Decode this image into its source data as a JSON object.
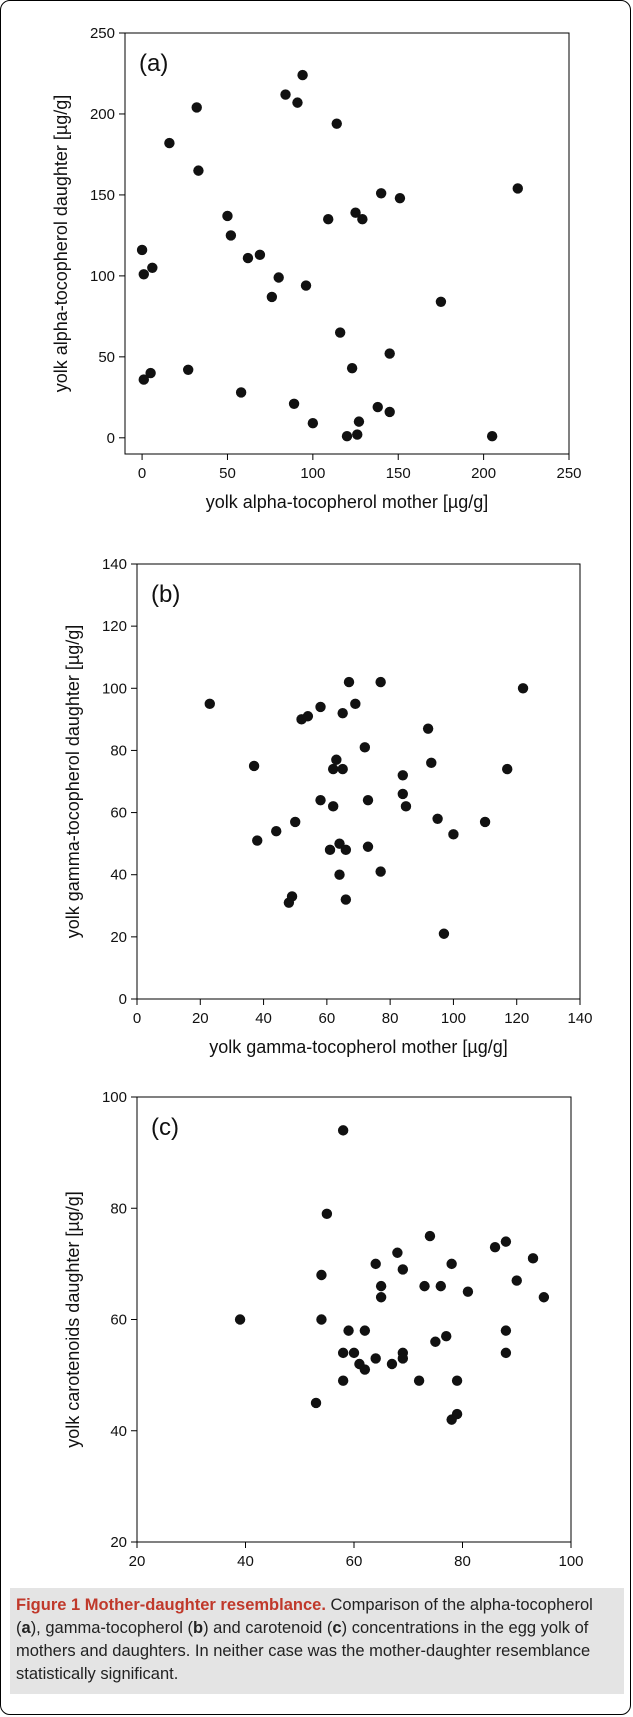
{
  "chart_data": [
    {
      "type": "scatter",
      "panel_label": "(a)",
      "xlabel": "yolk alpha-tocopherol mother [µg/g]",
      "ylabel": "yolk alpha-tocopherol daughter [µg/g]",
      "xlim": [
        -10,
        250
      ],
      "ylim": [
        -10,
        250
      ],
      "xticks": [
        0,
        50,
        100,
        150,
        200,
        250
      ],
      "yticks": [
        0,
        50,
        100,
        150,
        200,
        250
      ],
      "marker_color": "#111111",
      "points": [
        [
          0,
          116
        ],
        [
          1,
          101
        ],
        [
          6,
          105
        ],
        [
          5,
          40
        ],
        [
          1,
          36
        ],
        [
          27,
          42
        ],
        [
          16,
          182
        ],
        [
          32,
          204
        ],
        [
          33,
          165
        ],
        [
          50,
          137
        ],
        [
          52,
          125
        ],
        [
          58,
          28
        ],
        [
          62,
          111
        ],
        [
          69,
          113
        ],
        [
          76,
          87
        ],
        [
          80,
          99
        ],
        [
          84,
          212
        ],
        [
          89,
          21
        ],
        [
          91,
          207
        ],
        [
          94,
          224
        ],
        [
          96,
          94
        ],
        [
          100,
          9
        ],
        [
          109,
          135
        ],
        [
          114,
          194
        ],
        [
          116,
          65
        ],
        [
          120,
          1
        ],
        [
          123,
          43
        ],
        [
          125,
          139
        ],
        [
          127,
          10
        ],
        [
          126,
          2
        ],
        [
          129,
          135
        ],
        [
          138,
          19
        ],
        [
          140,
          151
        ],
        [
          145,
          52
        ],
        [
          145,
          16
        ],
        [
          151,
          148
        ],
        [
          175,
          84
        ],
        [
          205,
          1
        ],
        [
          220,
          154
        ]
      ]
    },
    {
      "type": "scatter",
      "panel_label": "(b)",
      "xlabel": "yolk gamma-tocopherol mother [µg/g]",
      "ylabel": "yolk gamma-tocopherol daughter [µg/g]",
      "xlim": [
        0,
        140
      ],
      "ylim": [
        0,
        140
      ],
      "xticks": [
        0,
        20,
        40,
        60,
        80,
        100,
        120,
        140
      ],
      "yticks": [
        0,
        20,
        40,
        60,
        80,
        100,
        120,
        140
      ],
      "marker_color": "#111111",
      "points": [
        [
          23,
          95
        ],
        [
          37,
          75
        ],
        [
          38,
          51
        ],
        [
          44,
          54
        ],
        [
          48,
          31
        ],
        [
          49,
          33
        ],
        [
          50,
          57
        ],
        [
          52,
          90
        ],
        [
          54,
          91
        ],
        [
          58,
          94
        ],
        [
          58,
          64
        ],
        [
          61,
          48
        ],
        [
          62,
          74
        ],
        [
          62,
          62
        ],
        [
          63,
          77
        ],
        [
          64,
          50
        ],
        [
          64,
          40
        ],
        [
          65,
          74
        ],
        [
          65,
          92
        ],
        [
          66,
          32
        ],
        [
          66,
          48
        ],
        [
          67,
          102
        ],
        [
          69,
          95
        ],
        [
          72,
          81
        ],
        [
          73,
          64
        ],
        [
          73,
          49
        ],
        [
          77,
          102
        ],
        [
          77,
          41
        ],
        [
          84,
          72
        ],
        [
          84,
          66
        ],
        [
          85,
          62
        ],
        [
          92,
          87
        ],
        [
          93,
          76
        ],
        [
          95,
          58
        ],
        [
          97,
          21
        ],
        [
          100,
          53
        ],
        [
          110,
          57
        ],
        [
          117,
          74
        ],
        [
          122,
          100
        ]
      ]
    },
    {
      "type": "scatter",
      "panel_label": "(c)",
      "xlabel": "yolk carotenoids mother [µg/g]",
      "ylabel": "yolk carotenoids daughter [µg/g]",
      "xlim": [
        20,
        100
      ],
      "ylim": [
        20,
        100
      ],
      "xticks": [
        20,
        40,
        60,
        80,
        100
      ],
      "yticks": [
        20,
        40,
        60,
        80,
        100
      ],
      "marker_color": "#111111",
      "points": [
        [
          39,
          60
        ],
        [
          53,
          45
        ],
        [
          54,
          68
        ],
        [
          54,
          60
        ],
        [
          55,
          79
        ],
        [
          58,
          94
        ],
        [
          58,
          54
        ],
        [
          58,
          49
        ],
        [
          59,
          58
        ],
        [
          60,
          54
        ],
        [
          61,
          52
        ],
        [
          62,
          51
        ],
        [
          62,
          58
        ],
        [
          64,
          70
        ],
        [
          64,
          53
        ],
        [
          65,
          64
        ],
        [
          65,
          66
        ],
        [
          67,
          52
        ],
        [
          68,
          72
        ],
        [
          69,
          69
        ],
        [
          69,
          54
        ],
        [
          69,
          53
        ],
        [
          72,
          49
        ],
        [
          73,
          66
        ],
        [
          74,
          75
        ],
        [
          75,
          56
        ],
        [
          76,
          66
        ],
        [
          77,
          57
        ],
        [
          78,
          70
        ],
        [
          78,
          42
        ],
        [
          79,
          43
        ],
        [
          79,
          49
        ],
        [
          81,
          65
        ],
        [
          86,
          73
        ],
        [
          88,
          74
        ],
        [
          88,
          58
        ],
        [
          88,
          54
        ],
        [
          90,
          67
        ],
        [
          93,
          71
        ],
        [
          95,
          64
        ]
      ]
    }
  ],
  "caption": {
    "title": "Figure 1 Mother-daughter resemblance.",
    "text_1": " Comparison of the alpha-tocopherol (",
    "bold_a": "a",
    "text_2": "), gamma-tocopherol (",
    "bold_b": "b",
    "text_3": ") and carotenoid (",
    "bold_c": "c",
    "text_4": ") concentrations in the egg yolk of mothers and daughters. In neither case was the mother-daughter resemblance statistically significant."
  }
}
